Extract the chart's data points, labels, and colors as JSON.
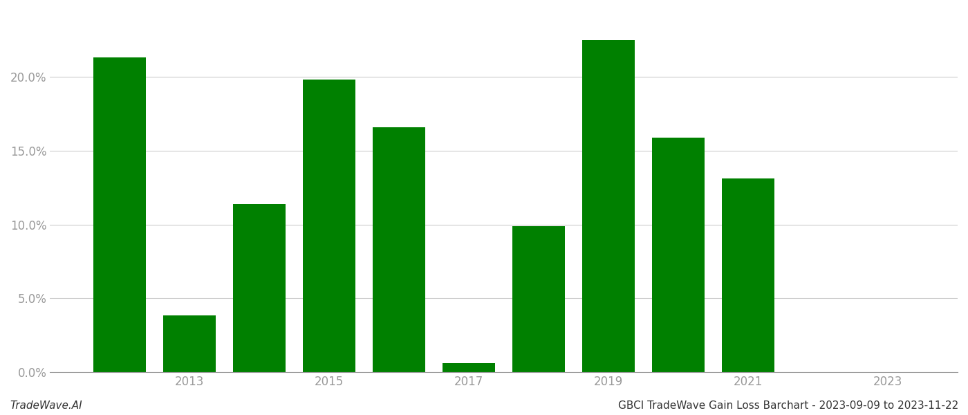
{
  "years": [
    2012,
    2013,
    2014,
    2015,
    2016,
    2017,
    2018,
    2019,
    2020,
    2021,
    2022
  ],
  "values": [
    0.213,
    0.0385,
    0.114,
    0.198,
    0.166,
    0.006,
    0.099,
    0.225,
    0.159,
    0.131,
    0.0
  ],
  "bar_color": "#008000",
  "background_color": "#ffffff",
  "footer_left": "TradeWave.AI",
  "footer_right": "GBCI TradeWave Gain Loss Barchart - 2023-09-09 to 2023-11-22",
  "ylim": [
    0,
    0.245
  ],
  "yticks": [
    0.0,
    0.05,
    0.1,
    0.15,
    0.2
  ],
  "xtick_positions": [
    2013,
    2015,
    2017,
    2019,
    2021,
    2023
  ],
  "xtick_labels": [
    "2013",
    "2015",
    "2017",
    "2019",
    "2021",
    "2023"
  ],
  "grid_color": "#cccccc",
  "tick_label_color": "#999999",
  "footer_fontsize": 11,
  "bar_width": 0.75
}
